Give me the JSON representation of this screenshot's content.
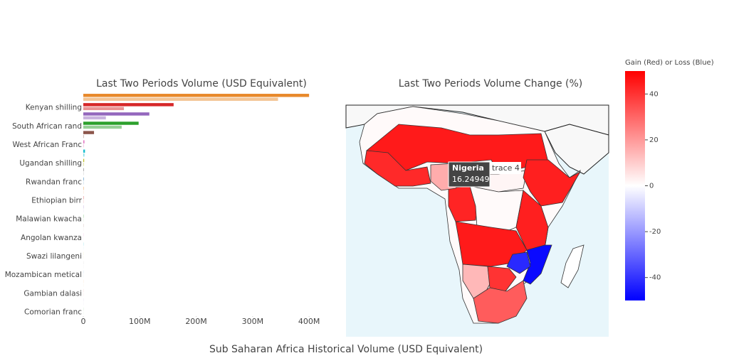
{
  "chart_data": [
    {
      "type": "hbar",
      "title": "Last Two Periods Volume (USD Equivalent)",
      "xlabel": "Sub Saharan Africa Historical Volume (USD Equivalent)",
      "categories": [
        null,
        "Kenyan shilling",
        null,
        "South African rand",
        null,
        "West African Franc",
        null,
        "Ugandan shilling",
        null,
        "Rwandan franc",
        null,
        "Ethiopian birr",
        null,
        "Malawian kwacha",
        null,
        "Angolan kwanza",
        null,
        "Swazi lilangeni",
        null,
        "Mozambican metical",
        null,
        "Gambian dalasi",
        null,
        "Comorian franc"
      ],
      "colors": [
        "#e8892b",
        "#d62728",
        "#9467bd",
        "#2ca02c",
        "#8c564b",
        "#e377c2",
        "#17becf",
        "#bcbd22",
        "#7f7f7f",
        "#1f77b4"
      ],
      "series": [
        {
          "opacity": 1,
          "values": [
            400000000,
            160000000,
            117000000,
            98000000,
            19000000,
            2000000,
            3000000,
            1500000,
            800000,
            600000,
            500000,
            400000,
            300000,
            300000,
            200000,
            200000,
            200000,
            100000,
            100000,
            100000,
            100000,
            100000,
            100000,
            100000
          ]
        },
        {
          "opacity": 0.5,
          "values": [
            345000000,
            72000000,
            40000000,
            68000000,
            1000000,
            1000000,
            2000000,
            1000000,
            500000,
            400000,
            300000,
            300000,
            200000,
            200000,
            100000,
            100000,
            100000,
            100000,
            100000,
            100000,
            100000,
            100000,
            100000,
            100000
          ]
        }
      ],
      "xlim": [
        0,
        420000000
      ],
      "xticks": [
        0,
        {
          "value": 100000000,
          "label": "100M"
        },
        {
          "value": 200000000,
          "label": "200M"
        },
        {
          "value": 300000000,
          "label": "300M"
        },
        {
          "value": 400000000,
          "label": "400M"
        }
      ]
    },
    {
      "type": "choropleth",
      "title": "Last Two Periods Volume Change (%)",
      "colorbar_title": "Gain (Red) or Loss (Blue)",
      "colorscale": [
        "#0000ff",
        "#ffffff",
        "#ff0000"
      ],
      "clim": [
        -50,
        50
      ],
      "cticks": [
        40,
        20,
        0,
        -20,
        -40
      ],
      "values": [
        1,
        45,
        42,
        2,
        44,
        43,
        1,
        44,
        45,
        -48,
        -42,
        14,
        40,
        32,
        0
      ],
      "hover": {
        "name": "Nigeria",
        "value": 16.24949,
        "trace": "trace 4"
      }
    }
  ]
}
